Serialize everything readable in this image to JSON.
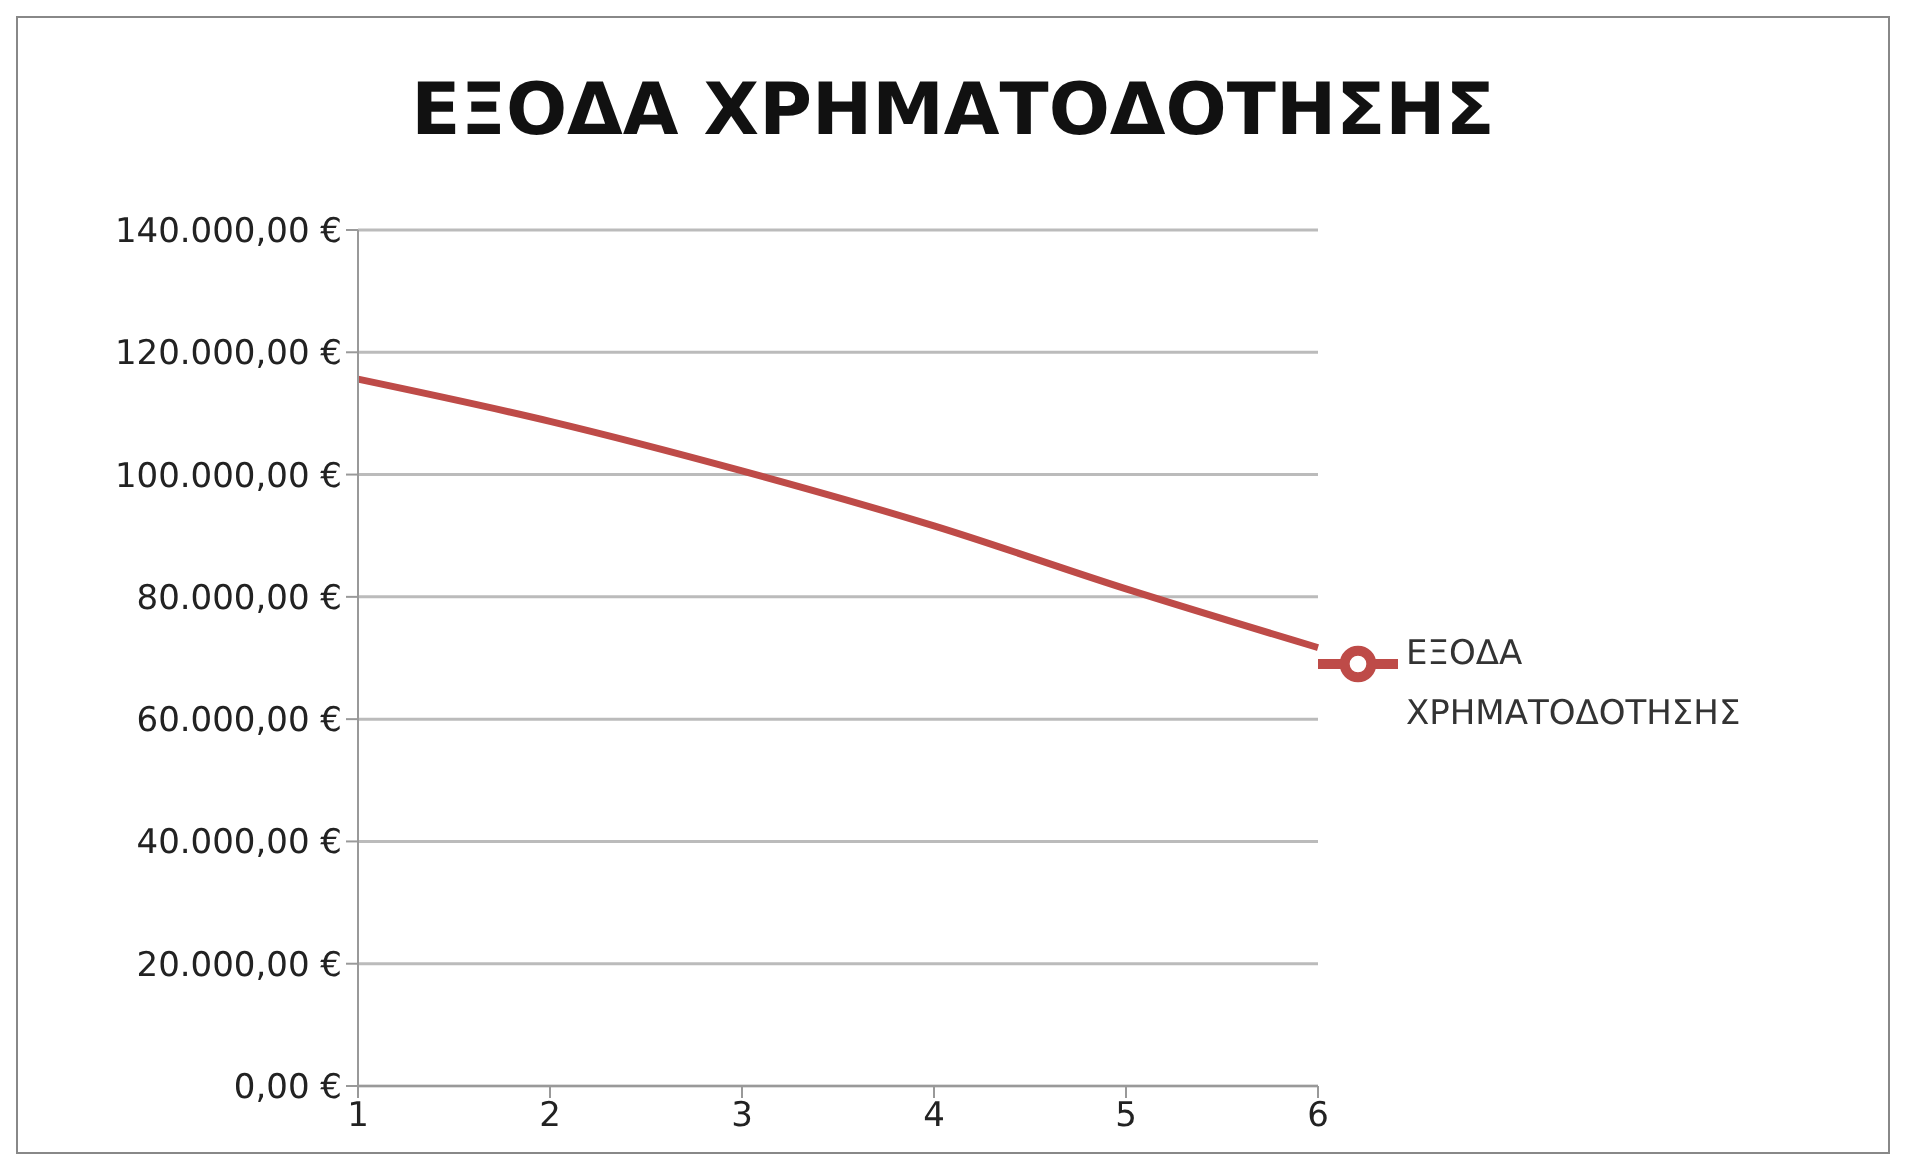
{
  "chart_data": {
    "type": "line",
    "title": "ΕΞΟΔΑ ΧΡΗΜΑΤΟΔΟΤΗΣΗΣ",
    "categories": [
      "1",
      "2",
      "3",
      "4",
      "5",
      "6"
    ],
    "series": [
      {
        "name": "ΕΞΟΔΑ ΧΡΗΜΑΤΟΔΟΤΗΣΗΣ",
        "color": "#be4b48",
        "values": [
          115600,
          108700,
          100600,
          91600,
          81300,
          71700
        ]
      }
    ],
    "ylim": [
      0,
      140000
    ],
    "yticks": [
      {
        "value": 0,
        "label": "0,00 €"
      },
      {
        "value": 20000,
        "label": "20.000,00 €"
      },
      {
        "value": 40000,
        "label": "40.000,00 €"
      },
      {
        "value": 60000,
        "label": "60.000,00 €"
      },
      {
        "value": 80000,
        "label": "80.000,00 €"
      },
      {
        "value": 100000,
        "label": "100.000,00 €"
      },
      {
        "value": 120000,
        "label": "120.000,00 €"
      },
      {
        "value": 140000,
        "label": "140.000,00 €"
      }
    ],
    "grid": "y",
    "legend": "right",
    "marker": "none",
    "line_style": "solid"
  }
}
